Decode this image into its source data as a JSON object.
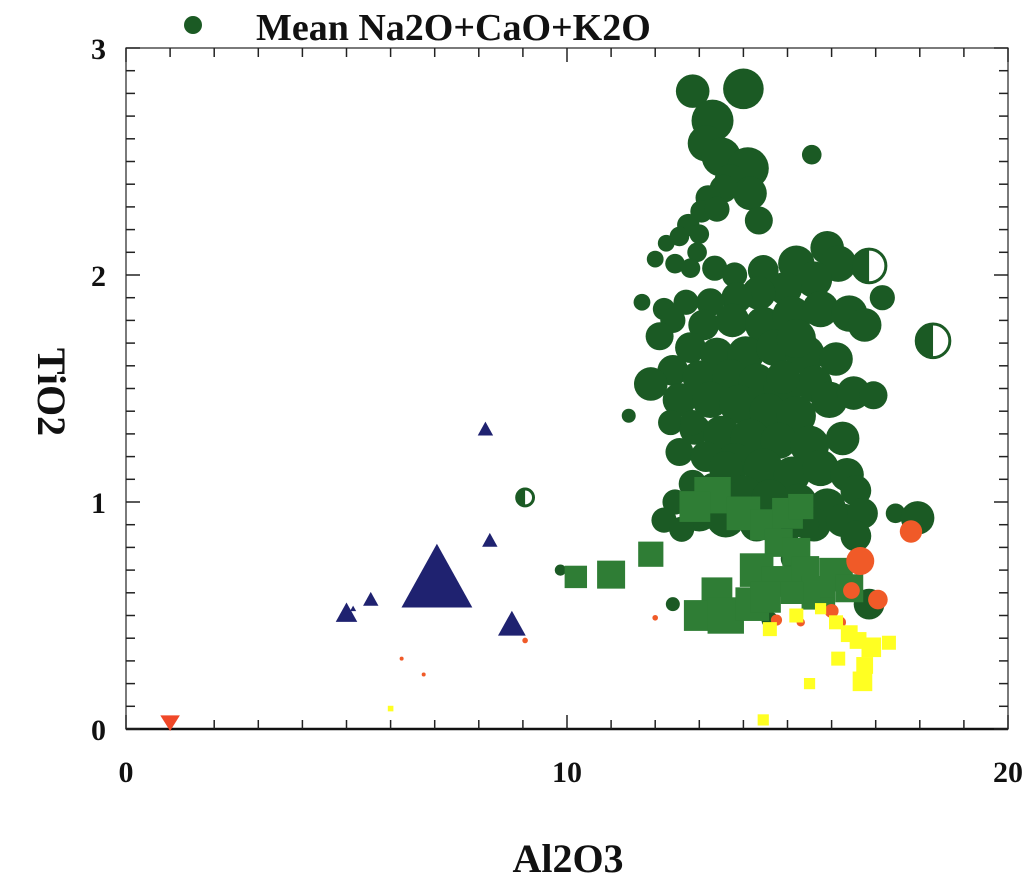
{
  "colors": {
    "green": "#1b5a24",
    "darkgreen": "#17501f",
    "squaregreen": "#2f7d35",
    "navy": "#1f2270",
    "red": "#f04828",
    "orange": "#f05a28",
    "yellow": "#ffff22"
  },
  "chart_data": {
    "type": "scatter",
    "title": "",
    "legend": {
      "label": "Mean Na2O+CaO+K2O",
      "marker": "circle",
      "color": "#1b5a24",
      "placement": "top-left"
    },
    "xlabel": "Al2O3",
    "ylabel": "TiO2",
    "xlim": [
      0,
      20
    ],
    "ylim": [
      0,
      3
    ],
    "x_ticks": [
      "0",
      "10",
      "20"
    ],
    "y_ticks": [
      "0",
      "1",
      "2",
      "3"
    ],
    "grid": false,
    "series": [
      {
        "marker": "circle",
        "color": "#1b5a24",
        "points": [
          [
            12.85,
            2.81,
            1.2
          ],
          [
            14.0,
            2.82,
            1.45
          ],
          [
            13.3,
            2.68,
            1.5
          ],
          [
            13.15,
            2.58,
            1.3
          ],
          [
            13.5,
            2.52,
            1.4
          ],
          [
            14.1,
            2.47,
            1.5
          ],
          [
            13.7,
            2.42,
            1.1
          ],
          [
            14.15,
            2.36,
            1.2
          ],
          [
            13.55,
            2.38,
            1.0
          ],
          [
            13.2,
            2.34,
            0.9
          ],
          [
            13.05,
            2.28,
            0.8
          ],
          [
            12.75,
            2.22,
            0.8
          ],
          [
            13.0,
            2.18,
            0.7
          ],
          [
            12.55,
            2.17,
            0.7
          ],
          [
            13.4,
            2.29,
            0.9
          ],
          [
            14.35,
            2.24,
            1.0
          ],
          [
            15.55,
            2.53,
            0.7
          ],
          [
            12.25,
            2.14,
            0.6
          ],
          [
            12.95,
            2.1,
            0.7
          ],
          [
            12.0,
            2.07,
            0.6
          ],
          [
            12.45,
            2.05,
            0.7
          ],
          [
            12.8,
            2.03,
            0.7
          ],
          [
            13.35,
            2.03,
            0.9
          ],
          [
            13.8,
            2.0,
            0.9
          ],
          [
            14.45,
            2.02,
            1.1
          ],
          [
            15.2,
            2.05,
            1.3
          ],
          [
            15.9,
            2.12,
            1.2
          ],
          [
            16.15,
            2.05,
            1.3
          ],
          [
            15.6,
            1.98,
            1.3
          ],
          [
            14.95,
            1.94,
            1.2
          ],
          [
            14.35,
            1.92,
            1.2
          ],
          [
            13.85,
            1.9,
            1.1
          ],
          [
            13.25,
            1.88,
            1.0
          ],
          [
            12.7,
            1.88,
            0.9
          ],
          [
            12.2,
            1.85,
            0.8
          ],
          [
            11.7,
            1.88,
            0.6
          ],
          [
            12.4,
            1.8,
            0.9
          ],
          [
            13.1,
            1.78,
            1.1
          ],
          [
            13.75,
            1.8,
            1.2
          ],
          [
            14.45,
            1.78,
            1.3
          ],
          [
            15.1,
            1.82,
            1.4
          ],
          [
            15.75,
            1.85,
            1.3
          ],
          [
            16.4,
            1.83,
            1.3
          ],
          [
            16.75,
            1.78,
            1.2
          ],
          [
            17.15,
            1.9,
            0.9
          ],
          [
            12.1,
            1.73,
            1.0
          ],
          [
            12.8,
            1.68,
            1.1
          ],
          [
            13.4,
            1.65,
            1.2
          ],
          [
            14.05,
            1.65,
            1.3
          ],
          [
            14.7,
            1.68,
            1.3
          ],
          [
            15.4,
            1.65,
            1.4
          ],
          [
            16.1,
            1.63,
            1.2
          ],
          [
            12.4,
            1.58,
            1.1
          ],
          [
            13.0,
            1.55,
            1.2
          ],
          [
            13.7,
            1.55,
            1.3
          ],
          [
            14.3,
            1.53,
            1.3
          ],
          [
            14.9,
            1.5,
            1.4
          ],
          [
            15.6,
            1.52,
            1.3
          ],
          [
            11.9,
            1.52,
            1.2
          ],
          [
            12.55,
            1.45,
            1.2
          ],
          [
            13.25,
            1.45,
            1.3
          ],
          [
            13.9,
            1.43,
            1.4
          ],
          [
            14.55,
            1.4,
            1.3
          ],
          [
            15.2,
            1.38,
            1.4
          ],
          [
            15.95,
            1.45,
            1.3
          ],
          [
            16.5,
            1.48,
            1.2
          ],
          [
            16.95,
            1.47,
            1.0
          ],
          [
            11.4,
            1.38,
            0.5
          ],
          [
            12.35,
            1.35,
            0.9
          ],
          [
            12.9,
            1.32,
            1.1
          ],
          [
            13.5,
            1.3,
            1.3
          ],
          [
            14.15,
            1.28,
            1.4
          ],
          [
            14.8,
            1.27,
            1.3
          ],
          [
            15.5,
            1.25,
            1.4
          ],
          [
            16.25,
            1.28,
            1.2
          ],
          [
            12.55,
            1.22,
            1.0
          ],
          [
            13.15,
            1.2,
            1.1
          ],
          [
            13.8,
            1.18,
            1.3
          ],
          [
            14.45,
            1.15,
            1.4
          ],
          [
            15.1,
            1.12,
            1.3
          ],
          [
            15.75,
            1.15,
            1.3
          ],
          [
            16.35,
            1.12,
            1.2
          ],
          [
            12.85,
            1.08,
            1.0
          ],
          [
            13.35,
            1.05,
            1.3
          ],
          [
            14.0,
            1.03,
            1.4
          ],
          [
            14.6,
            1.02,
            1.3
          ],
          [
            15.25,
            1.0,
            1.3
          ],
          [
            15.9,
            0.98,
            1.3
          ],
          [
            16.55,
            1.05,
            1.1
          ],
          [
            12.45,
            1.0,
            0.9
          ],
          [
            13.0,
            0.95,
            1.3
          ],
          [
            13.6,
            0.93,
            1.4
          ],
          [
            14.3,
            0.9,
            1.2
          ],
          [
            14.95,
            0.88,
            1.1
          ],
          [
            15.6,
            0.9,
            1.2
          ],
          [
            16.25,
            0.92,
            1.2
          ],
          [
            16.7,
            0.95,
            1.1
          ],
          [
            12.2,
            0.92,
            0.9
          ],
          [
            12.6,
            0.88,
            0.9
          ],
          [
            16.55,
            0.85,
            1.1
          ],
          [
            17.45,
            0.95,
            0.7
          ],
          [
            17.95,
            0.93,
            1.2
          ],
          [
            12.4,
            0.55,
            0.5
          ],
          [
            13.2,
            0.52,
            0.6
          ],
          [
            14.6,
            0.48,
            0.6
          ],
          [
            15.4,
            0.9,
            1.0
          ],
          [
            15.1,
            0.75,
            0.8
          ],
          [
            16.85,
            0.55,
            1.1
          ],
          [
            9.85,
            0.7,
            0.4
          ],
          [
            12.85,
            1.35,
            0.9
          ],
          [
            15.2,
            1.72,
            1.4
          ],
          [
            13.6,
            1.15,
            1.2
          ],
          [
            14.9,
            1.55,
            1.2
          ]
        ]
      },
      {
        "marker": "half-circle",
        "color": "#1b5a24",
        "points": [
          [
            16.85,
            2.04,
            1.2
          ],
          [
            18.3,
            1.71,
            1.2
          ],
          [
            9.05,
            1.02,
            0.6
          ]
        ]
      },
      {
        "marker": "square",
        "color": "#2f7d35",
        "points": [
          [
            13.3,
            1.03,
            1.3
          ],
          [
            12.9,
            0.98,
            1.1
          ],
          [
            14.0,
            0.95,
            1.2
          ],
          [
            14.5,
            0.9,
            1.1
          ],
          [
            15.0,
            0.95,
            1.1
          ],
          [
            15.3,
            0.98,
            0.9
          ],
          [
            11.9,
            0.77,
            0.9
          ],
          [
            14.8,
            0.82,
            1.0
          ],
          [
            15.2,
            0.78,
            1.0
          ],
          [
            11.0,
            0.68,
            1.0
          ],
          [
            10.2,
            0.67,
            0.8
          ],
          [
            13.4,
            0.6,
            1.1
          ],
          [
            14.3,
            0.7,
            1.2
          ],
          [
            14.75,
            0.65,
            1.1
          ],
          [
            15.4,
            0.7,
            1.0
          ],
          [
            16.1,
            0.68,
            1.2
          ],
          [
            16.4,
            0.62,
            1.0
          ],
          [
            15.7,
            0.6,
            1.2
          ],
          [
            13.0,
            0.5,
            1.1
          ],
          [
            13.6,
            0.5,
            1.3
          ],
          [
            14.2,
            0.55,
            1.2
          ],
          [
            14.5,
            0.58,
            1.1
          ],
          [
            15.1,
            0.6,
            0.8
          ],
          [
            15.9,
            0.55,
            0.5
          ]
        ]
      },
      {
        "marker": "circle",
        "color": "#f05a28",
        "points": [
          [
            16.65,
            0.74,
            1.0
          ],
          [
            17.8,
            0.87,
            0.8
          ],
          [
            17.05,
            0.57,
            0.7
          ],
          [
            16.45,
            0.61,
            0.6
          ],
          [
            16.0,
            0.52,
            0.5
          ],
          [
            16.2,
            0.47,
            0.4
          ],
          [
            14.75,
            0.48,
            0.4
          ],
          [
            15.3,
            0.47,
            0.3
          ],
          [
            12.0,
            0.49,
            0.2
          ],
          [
            9.05,
            0.39,
            0.2
          ],
          [
            6.25,
            0.31,
            0.1
          ],
          [
            6.75,
            0.24,
            0.1
          ]
        ]
      },
      {
        "marker": "square",
        "color": "#ffff22",
        "points": [
          [
            14.6,
            0.44,
            0.5
          ],
          [
            15.2,
            0.5,
            0.5
          ],
          [
            15.75,
            0.53,
            0.4
          ],
          [
            16.1,
            0.47,
            0.5
          ],
          [
            16.4,
            0.42,
            0.6
          ],
          [
            16.6,
            0.39,
            0.6
          ],
          [
            16.9,
            0.36,
            0.7
          ],
          [
            17.3,
            0.38,
            0.5
          ],
          [
            16.15,
            0.31,
            0.5
          ],
          [
            16.75,
            0.28,
            0.6
          ],
          [
            16.7,
            0.21,
            0.7
          ],
          [
            15.5,
            0.2,
            0.4
          ],
          [
            14.45,
            0.04,
            0.4
          ],
          [
            6.0,
            0.09,
            0.2
          ]
        ]
      },
      {
        "marker": "triangle-up",
        "color": "#1f2270",
        "points": [
          [
            7.05,
            0.66,
            2.3
          ],
          [
            8.15,
            1.32,
            0.5
          ],
          [
            8.25,
            0.83,
            0.5
          ],
          [
            5.55,
            0.57,
            0.5
          ],
          [
            5.0,
            0.51,
            0.7
          ],
          [
            8.75,
            0.46,
            0.9
          ],
          [
            5.15,
            0.53,
            0.2
          ]
        ]
      },
      {
        "marker": "triangle-down",
        "color": "#f04828",
        "points": [
          [
            1.0,
            0.03,
            0.7
          ]
        ]
      }
    ]
  }
}
